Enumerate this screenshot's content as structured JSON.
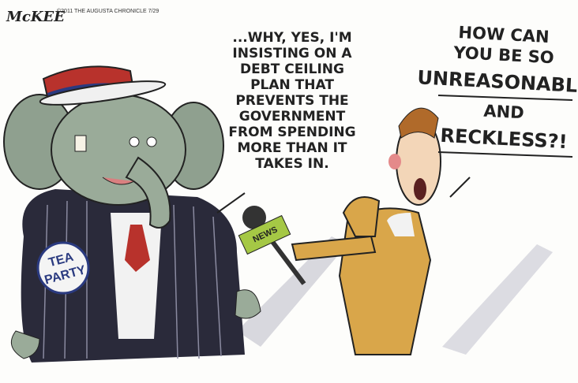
{
  "credit": {
    "signature": "McKEE",
    "notice": "©2011 THE AUGUSTA CHRONICLE 7/29"
  },
  "elephant": {
    "button": [
      "TEA",
      "PARTY"
    ],
    "speech": [
      "...WHY, YES, I'M",
      "INSISTING ON A",
      "DEBT CEILING",
      "PLAN THAT",
      "PREVENTS THE",
      "GOVERNMENT",
      "FROM SPENDING",
      "MORE THAN IT",
      "TAKES IN."
    ]
  },
  "reporter": {
    "microphone": "NEWS",
    "speech": [
      {
        "text": "HOW CAN",
        "emphasis": false
      },
      {
        "text": "YOU BE SO",
        "emphasis": false
      },
      {
        "text": "UNREASONABLE",
        "emphasis": true
      },
      {
        "text": "AND",
        "emphasis": false
      },
      {
        "text": "RECKLESS?!",
        "emphasis": true
      }
    ]
  }
}
